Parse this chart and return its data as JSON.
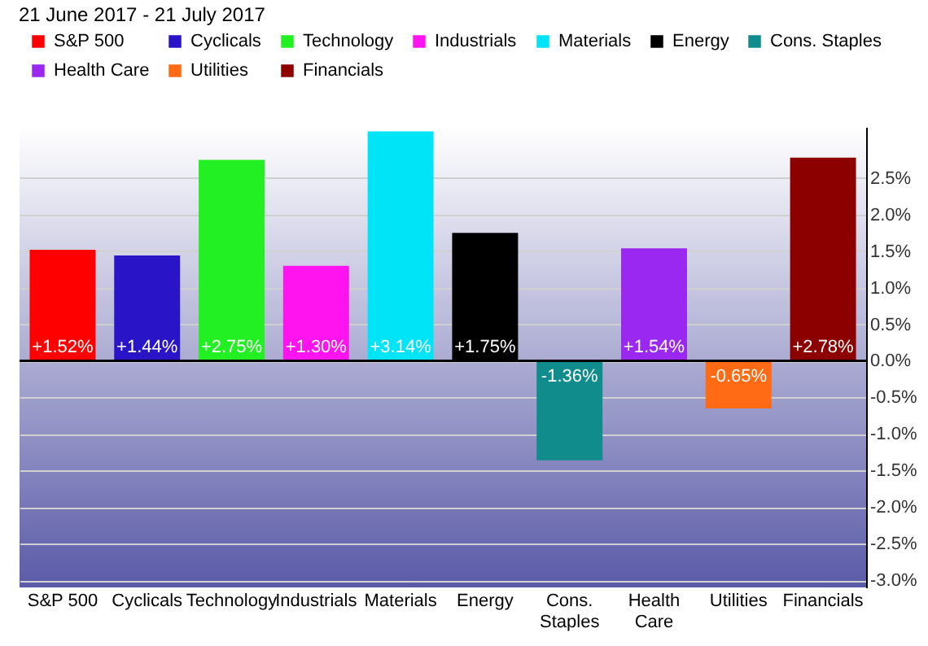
{
  "chart_data": {
    "type": "bar",
    "subtitle": "21 June 2017 - 21 July 2017",
    "categories": [
      "S&P 500",
      "Cyclicals",
      "Technology",
      "Industrials",
      "Materials",
      "Energy",
      "Cons. Staples",
      "Health Care",
      "Utilities",
      "Financials"
    ],
    "series": [
      {
        "name": "S&P 500",
        "color": "#ff0000",
        "values": [
          1.52,
          null,
          null,
          null,
          null,
          null,
          null,
          null,
          null,
          null
        ],
        "value_labels": [
          "+1.52%",
          null,
          null,
          null,
          null,
          null,
          null,
          null,
          null,
          null
        ]
      },
      {
        "name": "Cyclicals",
        "color": "#2a14c8",
        "values": [
          null,
          1.44,
          null,
          null,
          null,
          null,
          null,
          null,
          null,
          null
        ],
        "value_labels": [
          null,
          "+1.44%",
          null,
          null,
          null,
          null,
          null,
          null,
          null,
          null
        ]
      },
      {
        "name": "Technology",
        "color": "#22f022",
        "values": [
          null,
          null,
          2.75,
          null,
          null,
          null,
          null,
          null,
          null,
          null
        ],
        "value_labels": [
          null,
          null,
          "+2.75%",
          null,
          null,
          null,
          null,
          null,
          null,
          null
        ]
      },
      {
        "name": "Industrials",
        "color": "#ff14f0",
        "values": [
          null,
          null,
          null,
          1.3,
          null,
          null,
          null,
          null,
          null,
          null
        ],
        "value_labels": [
          null,
          null,
          null,
          "+1.30%",
          null,
          null,
          null,
          null,
          null,
          null
        ]
      },
      {
        "name": "Materials",
        "color": "#00e4f8",
        "values": [
          null,
          null,
          null,
          null,
          3.14,
          null,
          null,
          null,
          null,
          null
        ],
        "value_labels": [
          null,
          null,
          null,
          null,
          "+3.14%",
          null,
          null,
          null,
          null,
          null
        ]
      },
      {
        "name": "Energy",
        "color": "#000000",
        "values": [
          null,
          null,
          null,
          null,
          null,
          1.75,
          null,
          null,
          null,
          null
        ],
        "value_labels": [
          null,
          null,
          null,
          null,
          null,
          "+1.75%",
          null,
          null,
          null,
          null
        ]
      },
      {
        "name": "Cons. Staples",
        "color": "#108c8c",
        "values": [
          null,
          null,
          null,
          null,
          null,
          null,
          -1.36,
          null,
          null,
          null
        ],
        "value_labels": [
          null,
          null,
          null,
          null,
          null,
          null,
          "-1.36%",
          null,
          null,
          null
        ]
      },
      {
        "name": "Health Care",
        "color": "#9a28f0",
        "values": [
          null,
          null,
          null,
          null,
          null,
          null,
          null,
          1.54,
          null,
          null
        ],
        "value_labels": [
          null,
          null,
          null,
          null,
          null,
          null,
          null,
          "+1.54%",
          null,
          null
        ]
      },
      {
        "name": "Utilities",
        "color": "#ff6a14",
        "values": [
          null,
          null,
          null,
          null,
          null,
          null,
          null,
          null,
          -0.65,
          null
        ],
        "value_labels": [
          null,
          null,
          null,
          null,
          null,
          null,
          null,
          null,
          "-0.65%",
          null
        ]
      },
      {
        "name": "Financials",
        "color": "#8c0000",
        "values": [
          null,
          null,
          null,
          null,
          null,
          null,
          null,
          null,
          null,
          2.78
        ],
        "value_labels": [
          null,
          null,
          null,
          null,
          null,
          null,
          null,
          null,
          null,
          "+2.78%"
        ]
      }
    ],
    "ylim": [
      -3.1,
      3.2
    ],
    "yticks": [
      {
        "value": -3,
        "label": "-3.0%"
      },
      {
        "value": -2.5,
        "label": "-2.5%"
      },
      {
        "value": -2,
        "label": "-2.0%"
      },
      {
        "value": -1.5,
        "label": "-1.5%"
      },
      {
        "value": -1,
        "label": "-1.0%"
      },
      {
        "value": -0.5,
        "label": "-0.5%"
      },
      {
        "value": 0,
        "label": "0.0%"
      },
      {
        "value": 0.5,
        "label": "0.5%"
      },
      {
        "value": 1,
        "label": "1.0%"
      },
      {
        "value": 1.5,
        "label": "1.5%"
      },
      {
        "value": 2,
        "label": "2.0%"
      },
      {
        "value": 2.5,
        "label": "2.5%"
      }
    ],
    "grid": "y",
    "legend": "top left"
  }
}
